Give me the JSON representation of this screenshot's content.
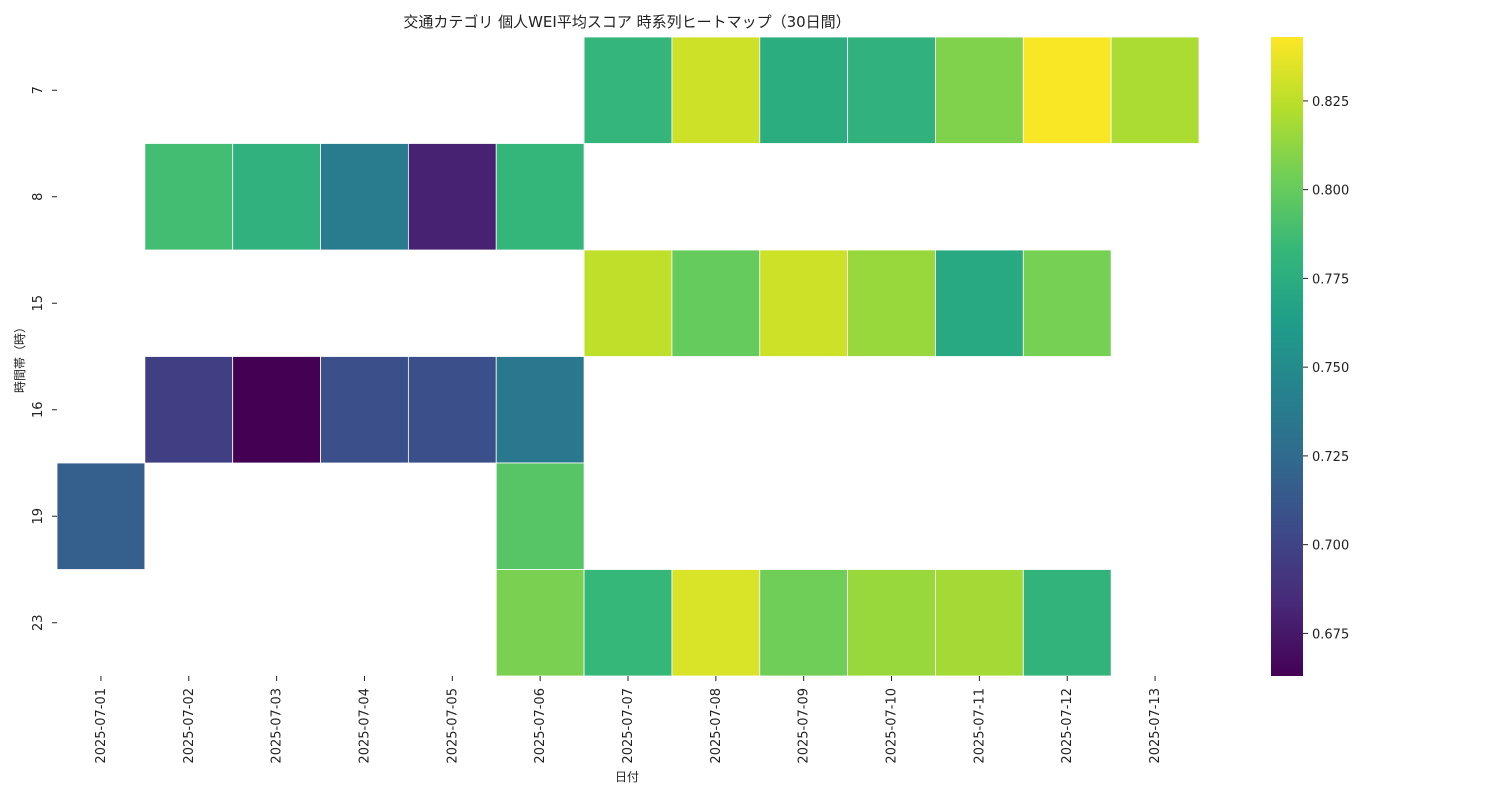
{
  "chart_data": {
    "type": "heatmap",
    "title": "交通カテゴリ 個人WEI平均スコア 時系列ヒートマップ（30日間）",
    "xlabel": "日付",
    "ylabel": "時間帯（時）",
    "x": [
      "2025-07-01",
      "2025-07-02",
      "2025-07-03",
      "2025-07-04",
      "2025-07-05",
      "2025-07-06",
      "2025-07-07",
      "2025-07-08",
      "2025-07-09",
      "2025-07-10",
      "2025-07-11",
      "2025-07-12",
      "2025-07-13"
    ],
    "y": [
      "7",
      "8",
      "15",
      "16",
      "19",
      "23"
    ],
    "values": [
      [
        null,
        null,
        null,
        null,
        null,
        null,
        0.781,
        0.83,
        0.775,
        0.779,
        0.808,
        0.842,
        0.82
      ],
      [
        null,
        0.788,
        0.778,
        0.738,
        0.68,
        0.782,
        null,
        null,
        null,
        null,
        null,
        null,
        null
      ],
      [
        null,
        null,
        null,
        null,
        null,
        null,
        0.826,
        0.8,
        0.83,
        0.815,
        0.772,
        0.805,
        null
      ],
      [
        null,
        0.697,
        0.663,
        0.707,
        0.707,
        0.735,
        null,
        null,
        null,
        null,
        null,
        null,
        null
      ],
      [
        0.717,
        null,
        null,
        null,
        null,
        0.795,
        null,
        null,
        null,
        null,
        null,
        null,
        null
      ],
      [
        null,
        null,
        null,
        null,
        null,
        0.806,
        0.783,
        0.833,
        0.803,
        0.815,
        0.818,
        0.78,
        null
      ]
    ],
    "colormap": "viridis",
    "vmin": 0.663,
    "vmax": 0.843,
    "colorbar_ticks": [
      "0.675",
      "0.700",
      "0.725",
      "0.750",
      "0.775",
      "0.800",
      "0.825"
    ],
    "grid": false,
    "legend": "colorbar right"
  }
}
